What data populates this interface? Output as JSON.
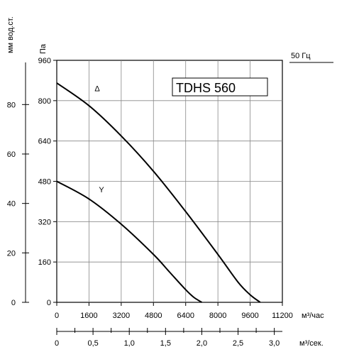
{
  "chart_data": {
    "type": "line",
    "title": "TDHS 560",
    "frequency_label": "50 Гц",
    "ylabel_pa": "Па",
    "ylabel_mm": "мм вод.ст.",
    "xlabel_flow_hour": "м³/час",
    "xlabel_flow_sec": "м³/сек.",
    "ylim_pa": [
      0,
      960
    ],
    "yticks_pa": [
      0,
      160,
      320,
      480,
      640,
      800,
      960
    ],
    "yticks_mm": [
      0,
      20,
      40,
      60,
      80
    ],
    "xlim_hour": [
      0,
      11200
    ],
    "xticks_hour": [
      0,
      1600,
      3200,
      4800,
      6400,
      8000,
      9600,
      11200
    ],
    "xticks_sec": [
      "0",
      "0,5",
      "1,0",
      "1,5",
      "2,0",
      "2,5",
      "3,0"
    ],
    "grid": true,
    "series": [
      {
        "name": "Δ",
        "x": [
          0,
          1600,
          3200,
          4800,
          6400,
          8000,
          9000,
          9600,
          10100
        ],
        "y": [
          870,
          780,
          660,
          520,
          360,
          190,
          80,
          30,
          0
        ]
      },
      {
        "name": "Y",
        "x": [
          0,
          1600,
          3200,
          4800,
          5600,
          6400,
          6800,
          7200
        ],
        "y": [
          480,
          410,
          310,
          190,
          120,
          50,
          20,
          0
        ]
      }
    ]
  }
}
